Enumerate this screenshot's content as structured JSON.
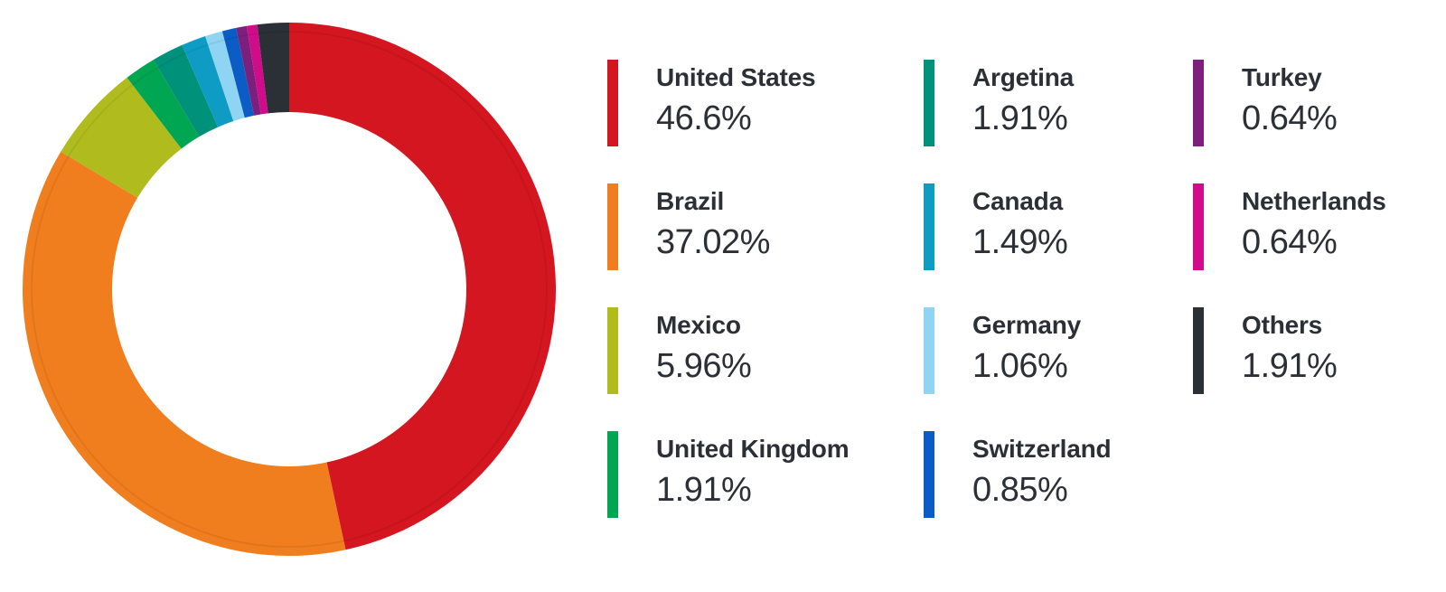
{
  "chart_data": {
    "type": "pie",
    "title": "",
    "categories": [
      "United States",
      "Brazil",
      "Mexico",
      "United Kingdom",
      "Argetina",
      "Canada",
      "Germany",
      "Switzerland",
      "Turkey",
      "Netherlands",
      "Others"
    ],
    "values": [
      46.6,
      37.02,
      5.96,
      1.91,
      1.91,
      1.49,
      1.06,
      0.85,
      0.64,
      0.64,
      1.91
    ],
    "labels": [
      "46.6%",
      "37.02%",
      "5.96%",
      "1.91%",
      "1.91%",
      "1.49%",
      "1.06%",
      "0.85%",
      "0.64%",
      "0.64%",
      "1.91%"
    ],
    "colors": [
      "#d3161f",
      "#f07d1e",
      "#b0bb1e",
      "#00a651",
      "#00917a",
      "#0e9cc4",
      "#8fd4f2",
      "#0b5cc4",
      "#7d1f7c",
      "#d10c8a",
      "#2b2f36"
    ],
    "donut": true,
    "legend_position": "right",
    "legend_columns": 3
  }
}
